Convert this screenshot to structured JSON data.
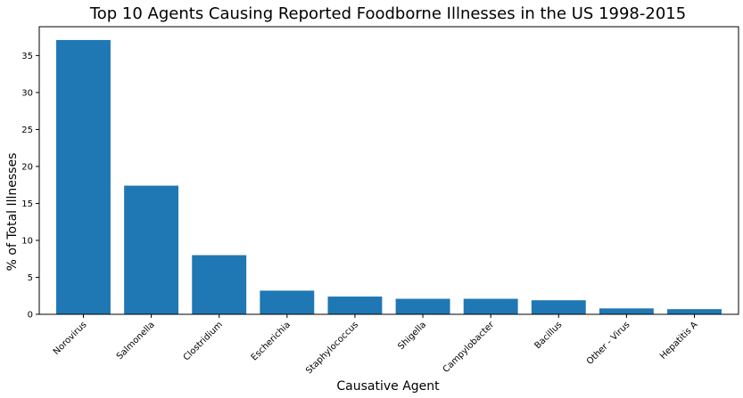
{
  "chart_data": {
    "type": "bar",
    "title": "Top 10 Agents Causing Reported Foodborne Illnesses in the US 1998-2015",
    "xlabel": "Causative Agent",
    "ylabel": "% of Total Illnesses",
    "categories": [
      "Norovirus",
      "Salmonella",
      "Clostridium",
      "Escherichia",
      "Staphylococcus",
      "Shigella",
      "Campylobacter",
      "Bacillus",
      "Other - Virus",
      "Hepatitis A"
    ],
    "values": [
      37.1,
      17.4,
      8.0,
      3.2,
      2.4,
      2.1,
      2.1,
      1.9,
      0.8,
      0.7
    ],
    "yticks": [
      0,
      5,
      10,
      15,
      20,
      25,
      30,
      35
    ],
    "ylim": [
      0,
      38.9
    ],
    "grid": false,
    "bar_color": "#1f77b4"
  }
}
